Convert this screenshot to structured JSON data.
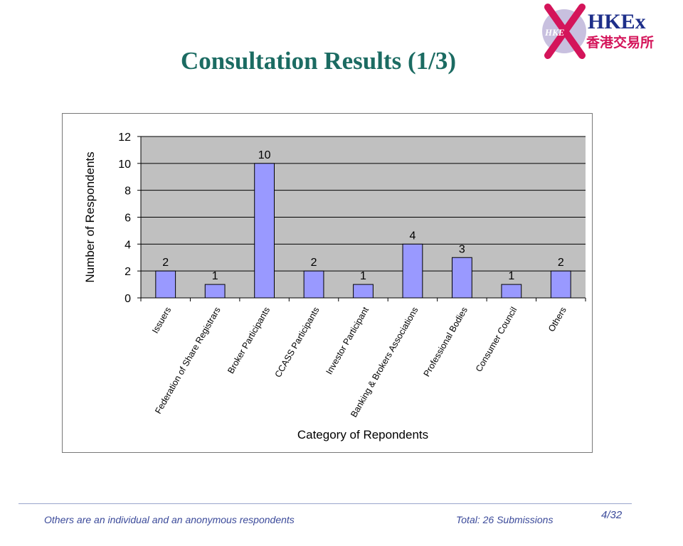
{
  "slide": {
    "title": "Consultation Results (1/3)",
    "footer_note": "Others are an individual and an anonymous respondents",
    "footer_total": "Total: 26 Submissions",
    "page_number": "4/32"
  },
  "logo": {
    "latin": "HKEx",
    "badge": "HKE",
    "chinese": "香港交易所",
    "colors": {
      "ring": "#c8c0df",
      "x": "#d4145a",
      "text": "#1e2f8a"
    }
  },
  "colors": {
    "title": "#1b6b62",
    "bar": "#9999ff",
    "plot_bg": "#c0c0c0",
    "footer": "#3b4a9a"
  },
  "chart_data": {
    "type": "bar",
    "categories": [
      "Issuers",
      "Federation of Share Registrars",
      "Broker Participants",
      "CCASS Participants",
      "Investor Participant",
      "Banking & Brokers Associations",
      "Professional Bodies",
      "Consumer Council",
      "Others"
    ],
    "values": [
      2,
      1,
      10,
      2,
      1,
      4,
      3,
      1,
      2
    ],
    "xlabel": "Category of Repondents",
    "ylabel": "Number of Respondents",
    "ylim": [
      0,
      12
    ],
    "yticks": [
      0,
      2,
      4,
      6,
      8,
      10,
      12
    ],
    "grid": true,
    "legend": "none"
  }
}
